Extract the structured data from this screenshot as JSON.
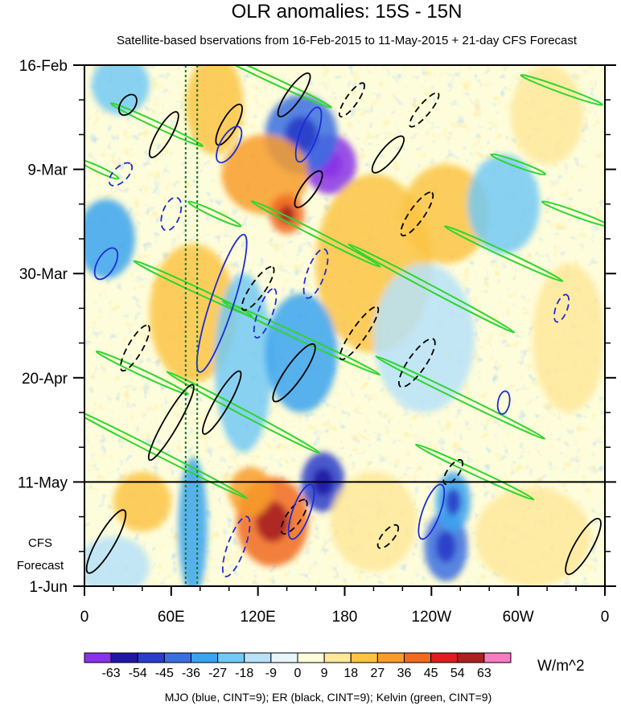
{
  "chart_data": {
    "type": "heatmap",
    "title": "OLR anomalies: 15S - 15N",
    "subtitle": "Satellite-based bservations from 16-Feb-2015 to 11-May-2015 + 21-day CFS Forecast",
    "x_tick_labels": [
      "0",
      "60E",
      "120E",
      "180",
      "120W",
      "60W",
      "0"
    ],
    "x_ticks_lon": [
      0,
      60,
      120,
      180,
      240,
      300,
      360
    ],
    "xlim": [
      0,
      360
    ],
    "y_tick_labels": [
      "16-Feb",
      "9-Mar",
      "30-Mar",
      "20-Apr",
      "11-May",
      "1-Jun"
    ],
    "y_ticks_day": [
      0,
      21,
      42,
      63,
      84,
      105
    ],
    "ylim_days": [
      0,
      105
    ],
    "observation_end_day": 84,
    "forecast_label_lines": [
      "CFS",
      "Forecast"
    ],
    "dashed_reference_lons": [
      70,
      78
    ],
    "colorbar": {
      "unit": "W/m^2",
      "tick_labels": [
        "-63",
        "-54",
        "-45",
        "-36",
        "-27",
        "-18",
        "-9",
        "0",
        "9",
        "18",
        "27",
        "36",
        "45",
        "54",
        "63"
      ],
      "colors": [
        "#8a32e6",
        "#1f17a3",
        "#2a3dc9",
        "#3a6fe0",
        "#3ba3ef",
        "#73c9f5",
        "#b7e2f8",
        "#e6f6fb",
        "#fefddb",
        "#fee89a",
        "#fcc444",
        "#f89c2c",
        "#f06a1f",
        "#dc1e1e",
        "#a82222",
        "#f77dc0"
      ]
    },
    "footer": "MJO (blue, CINT=9); ER (black, CINT=9); Kelvin (green, CINT=9)",
    "anomaly_blobs": [
      {
        "lon": 170,
        "day": 20,
        "lonw": 18,
        "dw": 6,
        "v": -70
      },
      {
        "lon": 150,
        "day": 14,
        "lonw": 25,
        "dw": 8,
        "v": -40
      },
      {
        "lon": 125,
        "day": 22,
        "lonw": 30,
        "dw": 8,
        "v": 30
      },
      {
        "lon": 140,
        "day": 30,
        "lonw": 12,
        "dw": 4,
        "v": 45
      },
      {
        "lon": 90,
        "day": 8,
        "lonw": 20,
        "dw": 10,
        "v": 25
      },
      {
        "lon": 25,
        "day": 4,
        "lonw": 20,
        "dw": 6,
        "v": -25
      },
      {
        "lon": 15,
        "day": 35,
        "lonw": 20,
        "dw": 8,
        "v": -30
      },
      {
        "lon": 200,
        "day": 40,
        "lonw": 40,
        "dw": 18,
        "v": 20
      },
      {
        "lon": 75,
        "day": 50,
        "lonw": 30,
        "dw": 14,
        "v": 20
      },
      {
        "lon": 110,
        "day": 60,
        "lonw": 20,
        "dw": 18,
        "v": -25
      },
      {
        "lon": 150,
        "day": 58,
        "lonw": 25,
        "dw": 12,
        "v": -30
      },
      {
        "lon": 250,
        "day": 30,
        "lonw": 30,
        "dw": 10,
        "v": 25
      },
      {
        "lon": 290,
        "day": 28,
        "lonw": 25,
        "dw": 10,
        "v": -25
      },
      {
        "lon": 235,
        "day": 55,
        "lonw": 35,
        "dw": 15,
        "v": -15
      },
      {
        "lon": 320,
        "day": 10,
        "lonw": 25,
        "dw": 10,
        "v": 15
      },
      {
        "lon": 335,
        "day": 55,
        "lonw": 25,
        "dw": 15,
        "v": 15
      },
      {
        "lon": 130,
        "day": 92,
        "lonw": 25,
        "dw": 9,
        "v": 45
      },
      {
        "lon": 115,
        "day": 86,
        "lonw": 15,
        "dw": 5,
        "v": 30
      },
      {
        "lon": 75,
        "day": 93,
        "lonw": 10,
        "dw": 14,
        "v": -30
      },
      {
        "lon": 40,
        "day": 88,
        "lonw": 20,
        "dw": 6,
        "v": 20
      },
      {
        "lon": 165,
        "day": 84,
        "lonw": 15,
        "dw": 6,
        "v": -45
      },
      {
        "lon": 200,
        "day": 92,
        "lonw": 30,
        "dw": 10,
        "v": 15
      },
      {
        "lon": 250,
        "day": 97,
        "lonw": 15,
        "dw": 7,
        "v": -40
      },
      {
        "lon": 255,
        "day": 88,
        "lonw": 12,
        "dw": 6,
        "v": -35
      },
      {
        "lon": 310,
        "day": 95,
        "lonw": 40,
        "dw": 10,
        "v": 12
      },
      {
        "lon": 20,
        "day": 101,
        "lonw": 25,
        "dw": 6,
        "v": -12
      }
    ],
    "er_contours": [
      {
        "lon": 30,
        "day": 8,
        "rx": 8,
        "ry": 5,
        "rot": 55,
        "dash": false
      },
      {
        "lon": 55,
        "day": 14,
        "rx": 18,
        "ry": 5,
        "rot": 60,
        "dash": false
      },
      {
        "lon": 100,
        "day": 12,
        "rx": 16,
        "ry": 5,
        "rot": 60,
        "dash": false
      },
      {
        "lon": 145,
        "day": 6,
        "rx": 18,
        "ry": 5,
        "rot": 55,
        "dash": false
      },
      {
        "lon": 155,
        "day": 25,
        "rx": 15,
        "ry": 5,
        "rot": 55,
        "dash": false
      },
      {
        "lon": 185,
        "day": 7,
        "rx": 14,
        "ry": 4,
        "rot": 55,
        "dash": true
      },
      {
        "lon": 210,
        "day": 18,
        "rx": 16,
        "ry": 5,
        "rot": 50,
        "dash": false
      },
      {
        "lon": 230,
        "day": 30,
        "rx": 18,
        "ry": 5,
        "rot": 55,
        "dash": true
      },
      {
        "lon": 235,
        "day": 9,
        "rx": 15,
        "ry": 4,
        "rot": 50,
        "dash": true
      },
      {
        "lon": 120,
        "day": 45,
        "rx": 18,
        "ry": 5,
        "rot": 55,
        "dash": true
      },
      {
        "lon": 35,
        "day": 57,
        "rx": 18,
        "ry": 5,
        "rot": 60,
        "dash": true
      },
      {
        "lon": 60,
        "day": 72,
        "rx": 30,
        "ry": 5,
        "rot": 60,
        "dash": false
      },
      {
        "lon": 95,
        "day": 68,
        "rx": 25,
        "ry": 5,
        "rot": 60,
        "dash": false
      },
      {
        "lon": 145,
        "day": 62,
        "rx": 24,
        "ry": 6,
        "rot": 55,
        "dash": false
      },
      {
        "lon": 190,
        "day": 54,
        "rx": 22,
        "ry": 5,
        "rot": 55,
        "dash": true
      },
      {
        "lon": 230,
        "day": 60,
        "rx": 20,
        "ry": 6,
        "rot": 55,
        "dash": true
      },
      {
        "lon": 145,
        "day": 91,
        "rx": 14,
        "ry": 5,
        "rot": 55,
        "dash": true
      },
      {
        "lon": 210,
        "day": 95,
        "rx": 10,
        "ry": 4,
        "rot": 50,
        "dash": true
      },
      {
        "lon": 255,
        "day": 82,
        "rx": 10,
        "ry": 4,
        "rot": 55,
        "dash": true
      },
      {
        "lon": 345,
        "day": 97,
        "rx": 22,
        "ry": 6,
        "rot": 60,
        "dash": false
      },
      {
        "lon": 15,
        "day": 96,
        "rx": 25,
        "ry": 6,
        "rot": 60,
        "dash": false
      }
    ],
    "mjo_contours": [
      {
        "lon": 100,
        "day": 16,
        "rx": 14,
        "ry": 6,
        "rot": 60,
        "dash": false
      },
      {
        "lon": 155,
        "day": 14,
        "rx": 20,
        "ry": 6,
        "rot": 70,
        "dash": false
      },
      {
        "lon": 25,
        "day": 22,
        "rx": 10,
        "ry": 5,
        "rot": 45,
        "dash": true
      },
      {
        "lon": 60,
        "day": 30,
        "rx": 12,
        "ry": 6,
        "rot": 70,
        "dash": true
      },
      {
        "lon": 15,
        "day": 40,
        "rx": 12,
        "ry": 6,
        "rot": 60,
        "dash": false
      },
      {
        "lon": 95,
        "day": 48,
        "rx": 50,
        "ry": 8,
        "rot": 72,
        "dash": false
      },
      {
        "lon": 125,
        "day": 50,
        "rx": 18,
        "ry": 5,
        "rot": 70,
        "dash": true
      },
      {
        "lon": 160,
        "day": 42,
        "rx": 18,
        "ry": 6,
        "rot": 70,
        "dash": true
      },
      {
        "lon": 150,
        "day": 90,
        "rx": 20,
        "ry": 6,
        "rot": 70,
        "dash": false
      },
      {
        "lon": 240,
        "day": 90,
        "rx": 20,
        "ry": 6,
        "rot": 70,
        "dash": false
      },
      {
        "lon": 330,
        "day": 49,
        "rx": 10,
        "ry": 4,
        "rot": 70,
        "dash": true
      },
      {
        "lon": 105,
        "day": 97,
        "rx": 22,
        "ry": 6,
        "rot": 70,
        "dash": true
      },
      {
        "lon": 290,
        "day": 68,
        "rx": 8,
        "ry": 4,
        "rot": 80,
        "dash": false
      }
    ],
    "kelvin_bands": [
      {
        "lon": 130,
        "day": 3,
        "len": 90,
        "rot": -25
      },
      {
        "lon": 50,
        "day": 12,
        "len": 70,
        "rot": -25
      },
      {
        "lon": 10,
        "day": 21,
        "len": 30,
        "rot": -25
      },
      {
        "lon": 90,
        "day": 30,
        "len": 40,
        "rot": -25
      },
      {
        "lon": 160,
        "day": 34,
        "len": 100,
        "rot": -27
      },
      {
        "lon": 75,
        "day": 45,
        "len": 90,
        "rot": -25
      },
      {
        "lon": 240,
        "day": 45,
        "len": 130,
        "rot": -28
      },
      {
        "lon": 150,
        "day": 55,
        "len": 120,
        "rot": -25
      },
      {
        "lon": 290,
        "day": 38,
        "len": 90,
        "rot": -25
      },
      {
        "lon": 40,
        "day": 62,
        "len": 70,
        "rot": -25
      },
      {
        "lon": 110,
        "day": 70,
        "len": 120,
        "rot": -28
      },
      {
        "lon": 260,
        "day": 67,
        "len": 130,
        "rot": -26
      },
      {
        "lon": 50,
        "day": 78,
        "len": 140,
        "rot": -27
      },
      {
        "lon": 270,
        "day": 82,
        "len": 90,
        "rot": -25
      },
      {
        "lon": 330,
        "day": 5,
        "len": 60,
        "rot": -20
      },
      {
        "lon": 300,
        "day": 20,
        "len": 40,
        "rot": -20
      },
      {
        "lon": 340,
        "day": 30,
        "len": 50,
        "rot": -20
      }
    ]
  }
}
